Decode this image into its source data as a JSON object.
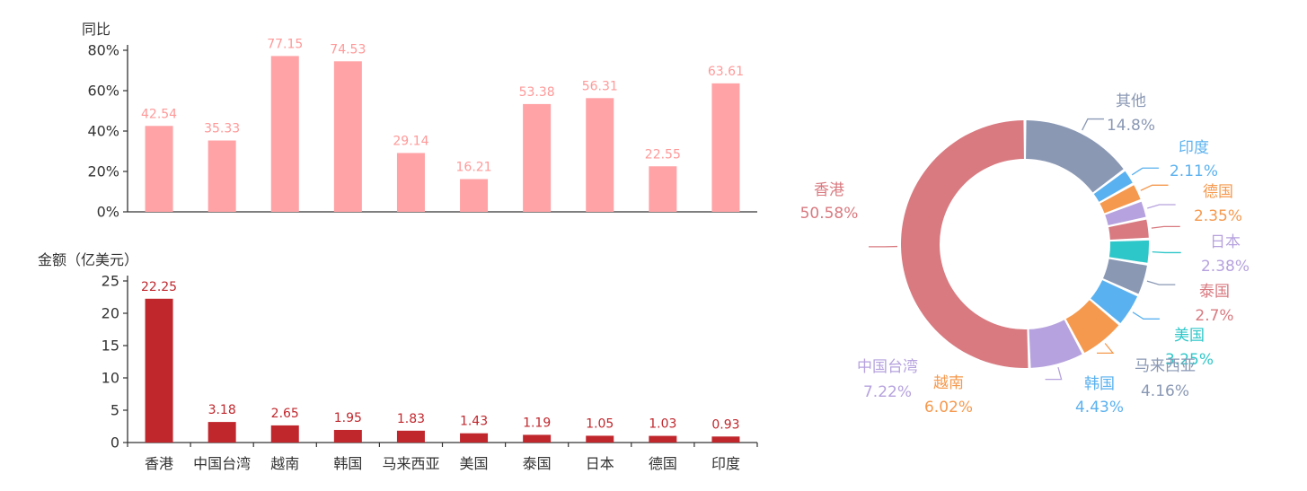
{
  "chart_data": [
    {
      "type": "bar",
      "ylabel": "同比",
      "categories": [
        "香港",
        "中国台湾",
        "越南",
        "韩国",
        "马来西亚",
        "美国",
        "泰国",
        "日本",
        "德国",
        "印度"
      ],
      "values": [
        42.54,
        35.33,
        77.15,
        74.53,
        29.14,
        16.21,
        53.38,
        56.31,
        22.55,
        63.61
      ],
      "ylim": [
        0,
        80
      ],
      "yticks": [
        "0%",
        "20%",
        "40%",
        "60%",
        "80%"
      ],
      "ytick_values": [
        0,
        20,
        40,
        60,
        80
      ],
      "color": "#ffa3a6",
      "label_color": "#ff9999"
    },
    {
      "type": "bar",
      "ylabel": "金额（亿美元）",
      "categories": [
        "香港",
        "中国台湾",
        "越南",
        "韩国",
        "马来西亚",
        "美国",
        "泰国",
        "日本",
        "德国",
        "印度"
      ],
      "values": [
        22.25,
        3.18,
        2.65,
        1.95,
        1.83,
        1.43,
        1.19,
        1.05,
        1.03,
        0.93
      ],
      "ylim": [
        0,
        25
      ],
      "yticks": [
        "0",
        "5",
        "10",
        "15",
        "20",
        "25"
      ],
      "ytick_values": [
        0,
        5,
        10,
        15,
        20,
        25
      ],
      "color": "#c0272d",
      "label_color": "#c0272d"
    },
    {
      "type": "pie",
      "donut": true,
      "slices": [
        {
          "name": "其他",
          "label": "14.8%",
          "value": 14.8,
          "color": "#8a98b4"
        },
        {
          "name": "印度",
          "label": "2.11%",
          "value": 2.11,
          "color": "#5ab1ef"
        },
        {
          "name": "德国",
          "label": "2.35%",
          "value": 2.35,
          "color": "#f5994e"
        },
        {
          "name": "日本",
          "label": "2.38%",
          "value": 2.38,
          "color": "#b6a2de"
        },
        {
          "name": "泰国",
          "label": "2.7%",
          "value": 2.7,
          "color": "#d87a80"
        },
        {
          "name": "美国",
          "label": "3.25%",
          "value": 3.25,
          "color": "#2ec7c9"
        },
        {
          "name": "马来西亚",
          "label": "4.16%",
          "value": 4.16,
          "color": "#8a98b4"
        },
        {
          "name": "韩国",
          "label": "4.43%",
          "value": 4.43,
          "color": "#5ab1ef"
        },
        {
          "name": "越南",
          "label": "6.02%",
          "value": 6.02,
          "color": "#f5994e"
        },
        {
          "name": "中国台湾",
          "label": "7.22%",
          "value": 7.22,
          "color": "#b6a2de"
        },
        {
          "name": "香港",
          "label": "50.58%",
          "value": 50.58,
          "color": "#d87a80"
        }
      ]
    }
  ]
}
